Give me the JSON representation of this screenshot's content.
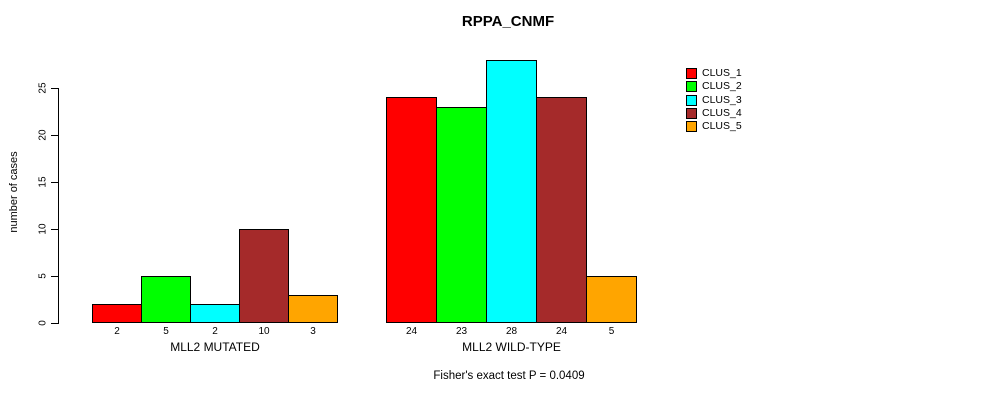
{
  "chart_data": {
    "type": "bar",
    "title": "RPPA_CNMF",
    "ylabel": "number of cases",
    "xlabel": "",
    "categories": [
      "MLL2 MUTATED",
      "MLL2 WILD-TYPE"
    ],
    "series": [
      {
        "name": "CLUS_1",
        "color": "#FF0000",
        "values": [
          2,
          24
        ]
      },
      {
        "name": "CLUS_2",
        "color": "#00FF00",
        "values": [
          5,
          23
        ]
      },
      {
        "name": "CLUS_3",
        "color": "#00FFFF",
        "values": [
          2,
          28
        ]
      },
      {
        "name": "CLUS_4",
        "color": "#A52A2A",
        "values": [
          10,
          24
        ]
      },
      {
        "name": "CLUS_5",
        "color": "#FFA500",
        "values": [
          3,
          5
        ]
      }
    ],
    "bar_value_labels": [
      [
        2,
        5,
        2,
        10,
        3
      ],
      [
        24,
        23,
        28,
        24,
        5
      ]
    ],
    "yticks": [
      0,
      5,
      10,
      15,
      20,
      25
    ],
    "ylim": [
      0,
      28
    ],
    "grid": false,
    "legend_position": "right",
    "annotation": "Fisher's exact test P = 0.0409"
  }
}
